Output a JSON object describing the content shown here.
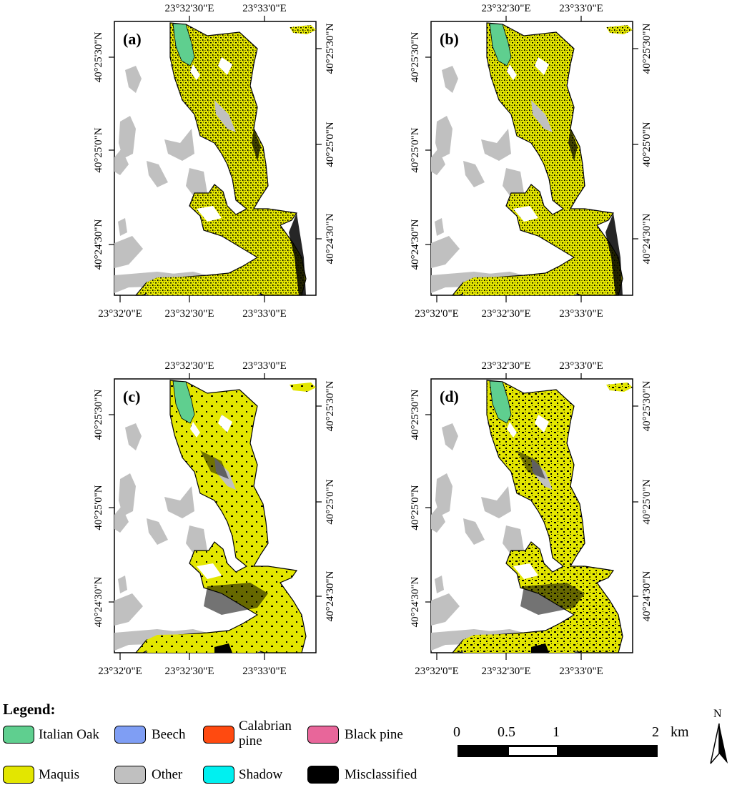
{
  "panels": [
    {
      "id": "a",
      "label": "(a)",
      "lon_top": [
        "23°32'30\"E",
        "23°33'0\"E"
      ],
      "lon_bottom": [
        "23°32'0\"E",
        "23°32'30\"E",
        "23°33'0\"E"
      ],
      "lat_left": [
        "40°25'30\"N",
        "40°25'0\"N",
        "40°24'30\"N"
      ],
      "lat_right": [
        "40°25'30\"N",
        "40°25'0\"N",
        "40°24'30\"N"
      ]
    },
    {
      "id": "b",
      "label": "(b)",
      "lon_top": [
        "23°32'30\"E",
        "23°33'0\"E"
      ],
      "lon_bottom": [
        "23°32'0\"E",
        "23°32'30\"E",
        "23°33'0\"E"
      ],
      "lat_left": [
        "40°25'30\"N",
        "40°25'0\"N",
        "40°24'30\"N"
      ],
      "lat_right": [
        "40°25'30\"N",
        "40°25'0\"N",
        "40°24'30\"N"
      ]
    },
    {
      "id": "c",
      "label": "(c)",
      "lon_top": [
        "23°32'30\"E",
        "23°33'0\"E"
      ],
      "lon_bottom": [
        "23°32'0\"E",
        "23°32'30\"E",
        "23°33'0\"E"
      ],
      "lat_left": [
        "40°25'30\"N",
        "40°25'0\"N",
        "40°24'30\"N"
      ],
      "lat_right": [
        "40°25'30\"N",
        "40°25'0\"N",
        "40°24'30\"N"
      ]
    },
    {
      "id": "d",
      "label": "(d)",
      "lon_top": [
        "23°32'30\"E",
        "23°33'0\"E"
      ],
      "lon_bottom": [
        "23°32'0\"E",
        "23°32'30\"E",
        "23°33'0\"E"
      ],
      "lat_left": [
        "40°25'30\"N",
        "40°25'0\"N",
        "40°24'30\"N"
      ],
      "lat_right": [
        "40°25'30\"N",
        "40°25'0\"N",
        "40°24'30\"N"
      ]
    }
  ],
  "legend": {
    "title": "Legend:",
    "items": [
      {
        "label": "Italian Oak",
        "color": "#5fcf8f"
      },
      {
        "label": "Beech",
        "color": "#7f9ef4"
      },
      {
        "label": "Calabrian pine",
        "color": "#ff4a10"
      },
      {
        "label": "Black pine",
        "color": "#e8669a"
      },
      {
        "label": "Maquis",
        "color": "#e3e600"
      },
      {
        "label": "Other",
        "color": "#c0c0c0"
      },
      {
        "label": "Shadow",
        "color": "#00f0f0"
      },
      {
        "label": "Misclassified",
        "color": "#000000"
      }
    ]
  },
  "scale_bar": {
    "ticks": [
      "0",
      "0.5",
      "1",
      "2"
    ],
    "unit": "km"
  },
  "north_arrow": {
    "label": "N"
  },
  "colors": {
    "maquis": "#e3e600",
    "other": "#c0c0c0",
    "italian_oak": "#5fcf8f",
    "misclassified": "#000000"
  }
}
